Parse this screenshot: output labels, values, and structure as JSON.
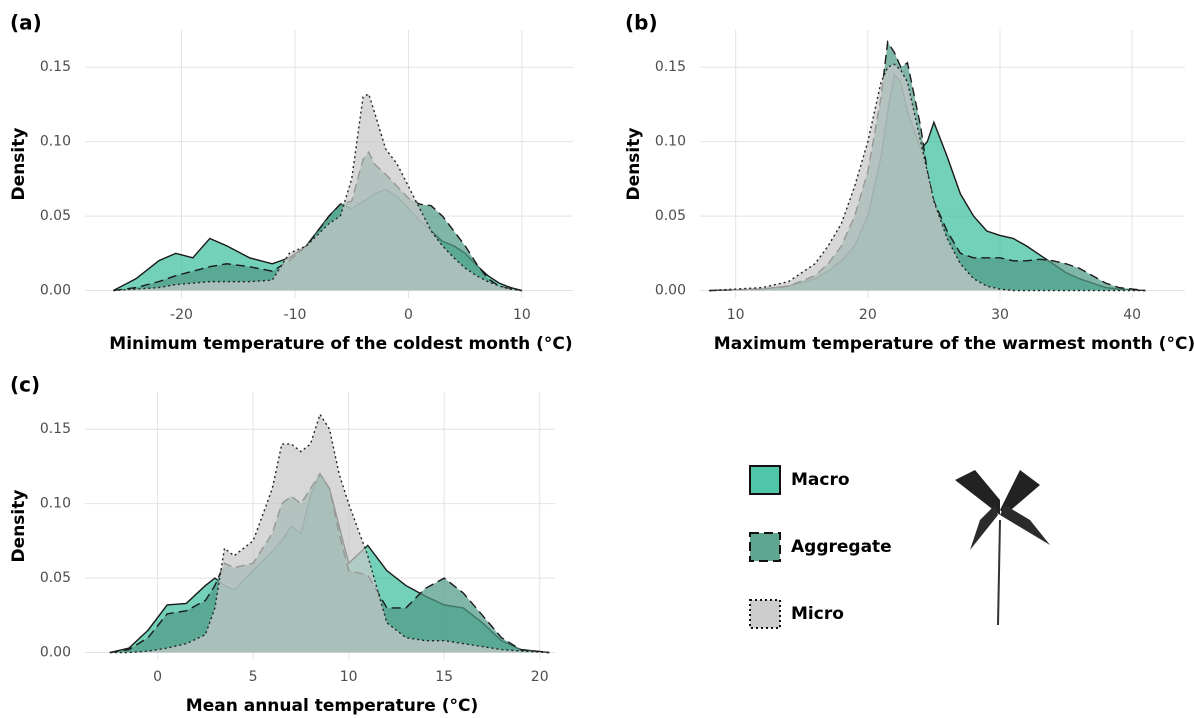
{
  "chart_data": [
    {
      "type": "density",
      "label": "(a)",
      "x_label": "Minimum temperature of the coldest month (°C)",
      "y_label": "Density",
      "xlim": [
        -28.5,
        14.5
      ],
      "xticks": [
        -20,
        -10,
        0,
        10
      ],
      "ylim": [
        -0.005,
        0.175
      ],
      "yticks": [
        {
          "value": 0,
          "label": "0.00"
        },
        {
          "value": 0.05,
          "label": "0.05"
        },
        {
          "value": 0.1,
          "label": "0.10"
        },
        {
          "value": 0.15,
          "label": "0.15"
        }
      ],
      "grid": true,
      "x": [
        -26,
        -24,
        -22,
        -20.5,
        -19,
        -17.5,
        -16,
        -14,
        -12,
        -10.5,
        -9,
        -7,
        -6,
        -5,
        -4,
        -3.5,
        -3,
        -2,
        -1,
        0,
        1,
        2,
        3,
        4,
        5,
        6,
        7,
        8,
        9,
        10
      ],
      "series": [
        {
          "name": "Macro",
          "color": "#3dbf9f",
          "line_style": "solid",
          "values": [
            0,
            0.008,
            0.02,
            0.025,
            0.022,
            0.035,
            0.03,
            0.022,
            0.018,
            0.022,
            0.03,
            0.05,
            0.058,
            0.055,
            0.06,
            0.062,
            0.065,
            0.068,
            0.063,
            0.055,
            0.047,
            0.04,
            0.033,
            0.03,
            0.025,
            0.017,
            0.01,
            0.005,
            0.002,
            0
          ]
        },
        {
          "name": "Aggregate",
          "color": "#4f9a86",
          "line_style": "dashed",
          "values": [
            0,
            0.002,
            0.006,
            0.01,
            0.013,
            0.016,
            0.018,
            0.016,
            0.013,
            0.02,
            0.03,
            0.05,
            0.058,
            0.06,
            0.088,
            0.093,
            0.085,
            0.078,
            0.07,
            0.062,
            0.058,
            0.057,
            0.05,
            0.04,
            0.03,
            0.018,
            0.008,
            0.003,
            0.001,
            0
          ]
        },
        {
          "name": "Micro",
          "color": "#c8c8c8",
          "line_style": "dotted",
          "values": [
            0,
            0.001,
            0.002,
            0.004,
            0.005,
            0.006,
            0.006,
            0.006,
            0.007,
            0.025,
            0.03,
            0.045,
            0.05,
            0.075,
            0.13,
            0.132,
            0.12,
            0.095,
            0.085,
            0.07,
            0.055,
            0.04,
            0.03,
            0.022,
            0.015,
            0.01,
            0.006,
            0.003,
            0.001,
            0
          ]
        }
      ]
    },
    {
      "type": "density",
      "label": "(b)",
      "x_label": "Maximum temperature of the warmest month (°C)",
      "y_label": "Density",
      "xlim": [
        7.3,
        44
      ],
      "xticks": [
        10,
        20,
        30,
        40
      ],
      "ylim": [
        -0.005,
        0.175
      ],
      "yticks": [
        {
          "value": 0,
          "label": "0.00"
        },
        {
          "value": 0.05,
          "label": "0.05"
        },
        {
          "value": 0.1,
          "label": "0.10"
        },
        {
          "value": 0.15,
          "label": "0.15"
        }
      ],
      "grid": true,
      "x": [
        8,
        12,
        14,
        16,
        17,
        18,
        19,
        20,
        21,
        21.5,
        22,
        22.5,
        23,
        24,
        24.5,
        25,
        26,
        27,
        28,
        29,
        30,
        31,
        32,
        33,
        34,
        35,
        36,
        37,
        38,
        39,
        41
      ],
      "series": [
        {
          "color": "#3dbf9f",
          "line_style": "solid",
          "values": [
            0,
            0.001,
            0.003,
            0.008,
            0.013,
            0.02,
            0.03,
            0.05,
            0.09,
            0.12,
            0.145,
            0.14,
            0.12,
            0.095,
            0.1,
            0.113,
            0.09,
            0.065,
            0.05,
            0.04,
            0.037,
            0.035,
            0.03,
            0.024,
            0.018,
            0.012,
            0.008,
            0.005,
            0.002,
            0.001,
            0
          ]
        },
        {
          "color": "#4f9a86",
          "line_style": "dashed",
          "values": [
            0,
            0.001,
            0.003,
            0.01,
            0.018,
            0.03,
            0.05,
            0.08,
            0.13,
            0.167,
            0.16,
            0.15,
            0.153,
            0.11,
            0.08,
            0.06,
            0.04,
            0.025,
            0.022,
            0.022,
            0.022,
            0.02,
            0.02,
            0.021,
            0.02,
            0.018,
            0.015,
            0.01,
            0.005,
            0.002,
            0
          ]
        },
        {
          "color": "#c8c8c8",
          "line_style": "dotted",
          "values": [
            0,
            0.002,
            0.006,
            0.018,
            0.03,
            0.045,
            0.07,
            0.1,
            0.14,
            0.15,
            0.152,
            0.148,
            0.14,
            0.1,
            0.08,
            0.06,
            0.035,
            0.018,
            0.008,
            0.003,
            0.001,
            0,
            0,
            0,
            0,
            0,
            0,
            0,
            0,
            0,
            0
          ]
        }
      ]
    },
    {
      "type": "density",
      "label": "(c)",
      "x_label": "Mean annual temperature (°C)",
      "y_label": "Density",
      "xlim": [
        -3.8,
        20.8
      ],
      "xticks": [
        0,
        5,
        10,
        15,
        20
      ],
      "ylim": [
        -0.005,
        0.175
      ],
      "yticks": [
        {
          "value": 0,
          "label": "0.00"
        },
        {
          "value": 0.05,
          "label": "0.05"
        },
        {
          "value": 0.1,
          "label": "0.10"
        },
        {
          "value": 0.15,
          "label": "0.15"
        }
      ],
      "grid": true,
      "x": [
        -2.5,
        -1.5,
        -0.5,
        0.5,
        1.5,
        2.5,
        3,
        3.5,
        4,
        5,
        6,
        6.5,
        7,
        7.5,
        8,
        8.5,
        9,
        9.5,
        10,
        11,
        12,
        13,
        14,
        15,
        16,
        17,
        18,
        19,
        20.5
      ],
      "series": [
        {
          "color": "#3dbf9f",
          "line_style": "solid",
          "values": [
            0,
            0.003,
            0.015,
            0.032,
            0.033,
            0.045,
            0.05,
            0.045,
            0.042,
            0.055,
            0.068,
            0.075,
            0.085,
            0.08,
            0.105,
            0.12,
            0.11,
            0.085,
            0.06,
            0.072,
            0.055,
            0.045,
            0.038,
            0.032,
            0.03,
            0.02,
            0.008,
            0.002,
            0
          ]
        },
        {
          "color": "#4f9a86",
          "line_style": "dashed",
          "values": [
            0,
            0.002,
            0.01,
            0.026,
            0.028,
            0.035,
            0.045,
            0.06,
            0.057,
            0.06,
            0.08,
            0.1,
            0.105,
            0.1,
            0.11,
            0.12,
            0.11,
            0.08,
            0.055,
            0.052,
            0.03,
            0.03,
            0.043,
            0.05,
            0.04,
            0.025,
            0.01,
            0.002,
            0
          ]
        },
        {
          "color": "#c8c8c8",
          "line_style": "dotted",
          "values": [
            0,
            0,
            0.001,
            0.003,
            0.006,
            0.012,
            0.03,
            0.07,
            0.065,
            0.075,
            0.11,
            0.14,
            0.14,
            0.135,
            0.14,
            0.16,
            0.15,
            0.12,
            0.1,
            0.065,
            0.02,
            0.01,
            0.008,
            0.008,
            0.006,
            0.004,
            0.002,
            0.001,
            0
          ]
        }
      ]
    }
  ]
}
